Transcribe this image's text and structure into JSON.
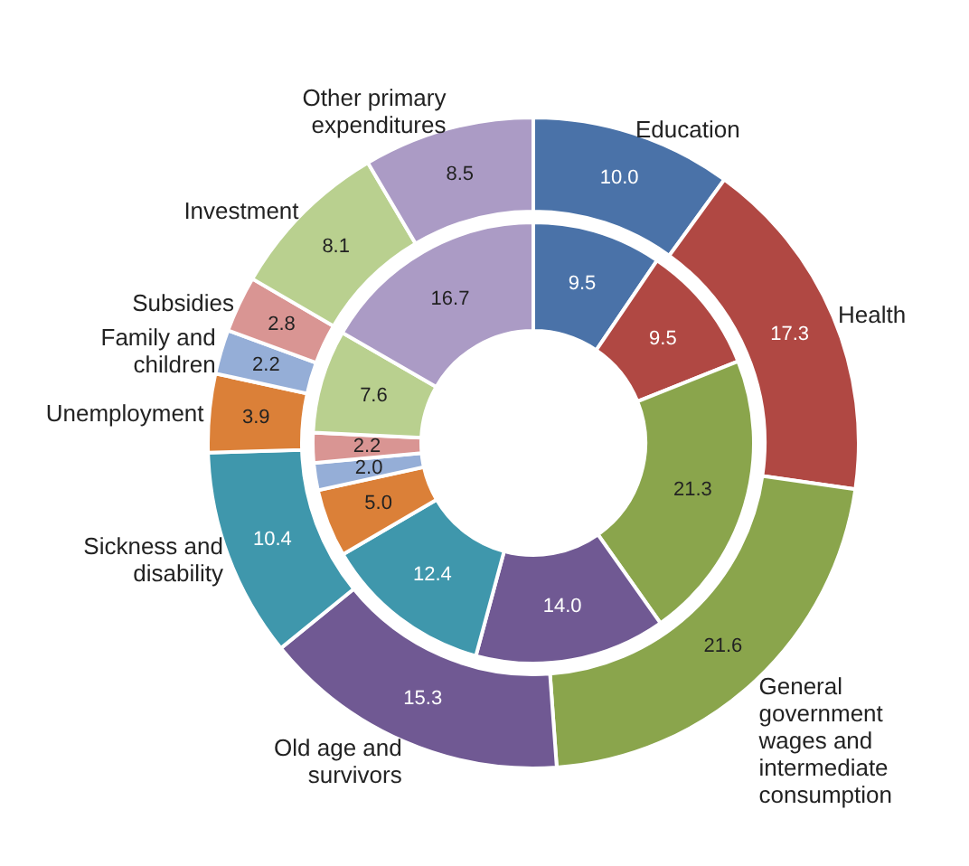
{
  "chart_data": {
    "type": "donut",
    "categories": [
      "Education",
      "Health",
      "General government wages and intermediate consumption",
      "Old age and survivors",
      "Sickness and disability",
      "Unemployment",
      "Family and children",
      "Subsidies",
      "Investment",
      "Other primary expenditures"
    ],
    "colors": [
      "#4a72a8",
      "#b04843",
      "#8aa54c",
      "#705993",
      "#3f97ac",
      "#db8038",
      "#95aed7",
      "#d99593",
      "#b9d08f",
      "#ab9bc5"
    ],
    "series": [
      {
        "values": [
          10.0,
          17.3,
          21.6,
          15.3,
          10.4,
          3.9,
          2.2,
          2.8,
          8.1,
          8.5
        ],
        "value_labels": [
          "10.0",
          "17.3",
          "21.6",
          "15.3",
          "10.4",
          "3.9",
          "2.2",
          "2.8",
          "8.1",
          "8.5"
        ]
      },
      {
        "values": [
          9.5,
          9.5,
          21.3,
          14.0,
          12.4,
          5.0,
          2.0,
          2.2,
          7.6,
          16.7
        ],
        "value_labels": [
          "9.5",
          "9.5",
          "21.3",
          "14.0",
          "12.4",
          "5.0",
          "2.0",
          "2.2",
          "7.6",
          "16.7"
        ]
      }
    ]
  }
}
